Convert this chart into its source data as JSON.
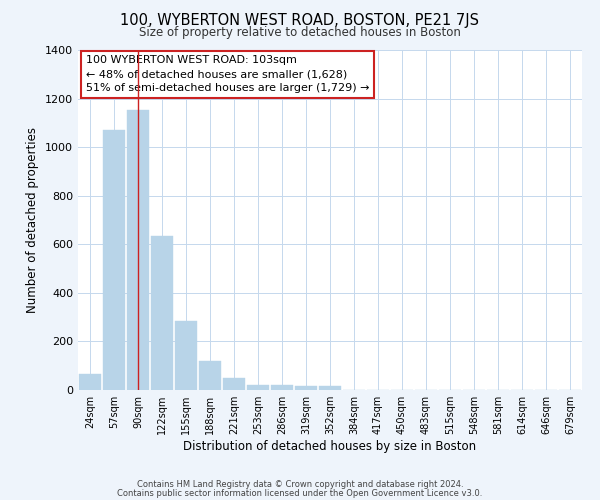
{
  "title": "100, WYBERTON WEST ROAD, BOSTON, PE21 7JS",
  "subtitle": "Size of property relative to detached houses in Boston",
  "xlabel": "Distribution of detached houses by size in Boston",
  "ylabel": "Number of detached properties",
  "bar_labels": [
    "24sqm",
    "57sqm",
    "90sqm",
    "122sqm",
    "155sqm",
    "188sqm",
    "221sqm",
    "253sqm",
    "286sqm",
    "319sqm",
    "352sqm",
    "384sqm",
    "417sqm",
    "450sqm",
    "483sqm",
    "515sqm",
    "548sqm",
    "581sqm",
    "614sqm",
    "646sqm",
    "679sqm"
  ],
  "bar_values": [
    65,
    1070,
    1155,
    635,
    285,
    120,
    48,
    20,
    20,
    18,
    15,
    0,
    0,
    0,
    0,
    0,
    0,
    0,
    0,
    0,
    0
  ],
  "bar_color": "#b8d4e8",
  "red_line_index": 2.5,
  "ylim": [
    0,
    1400
  ],
  "yticks": [
    0,
    200,
    400,
    600,
    800,
    1000,
    1200,
    1400
  ],
  "annotation_title": "100 WYBERTON WEST ROAD: 103sqm",
  "annotation_line1": "← 48% of detached houses are smaller (1,628)",
  "annotation_line2": "51% of semi-detached houses are larger (1,729) →",
  "footer_line1": "Contains HM Land Registry data © Crown copyright and database right 2024.",
  "footer_line2": "Contains public sector information licensed under the Open Government Licence v3.0.",
  "bg_color": "#eef4fb",
  "plot_bg_color": "#ffffff",
  "grid_color": "#c5d8ed"
}
